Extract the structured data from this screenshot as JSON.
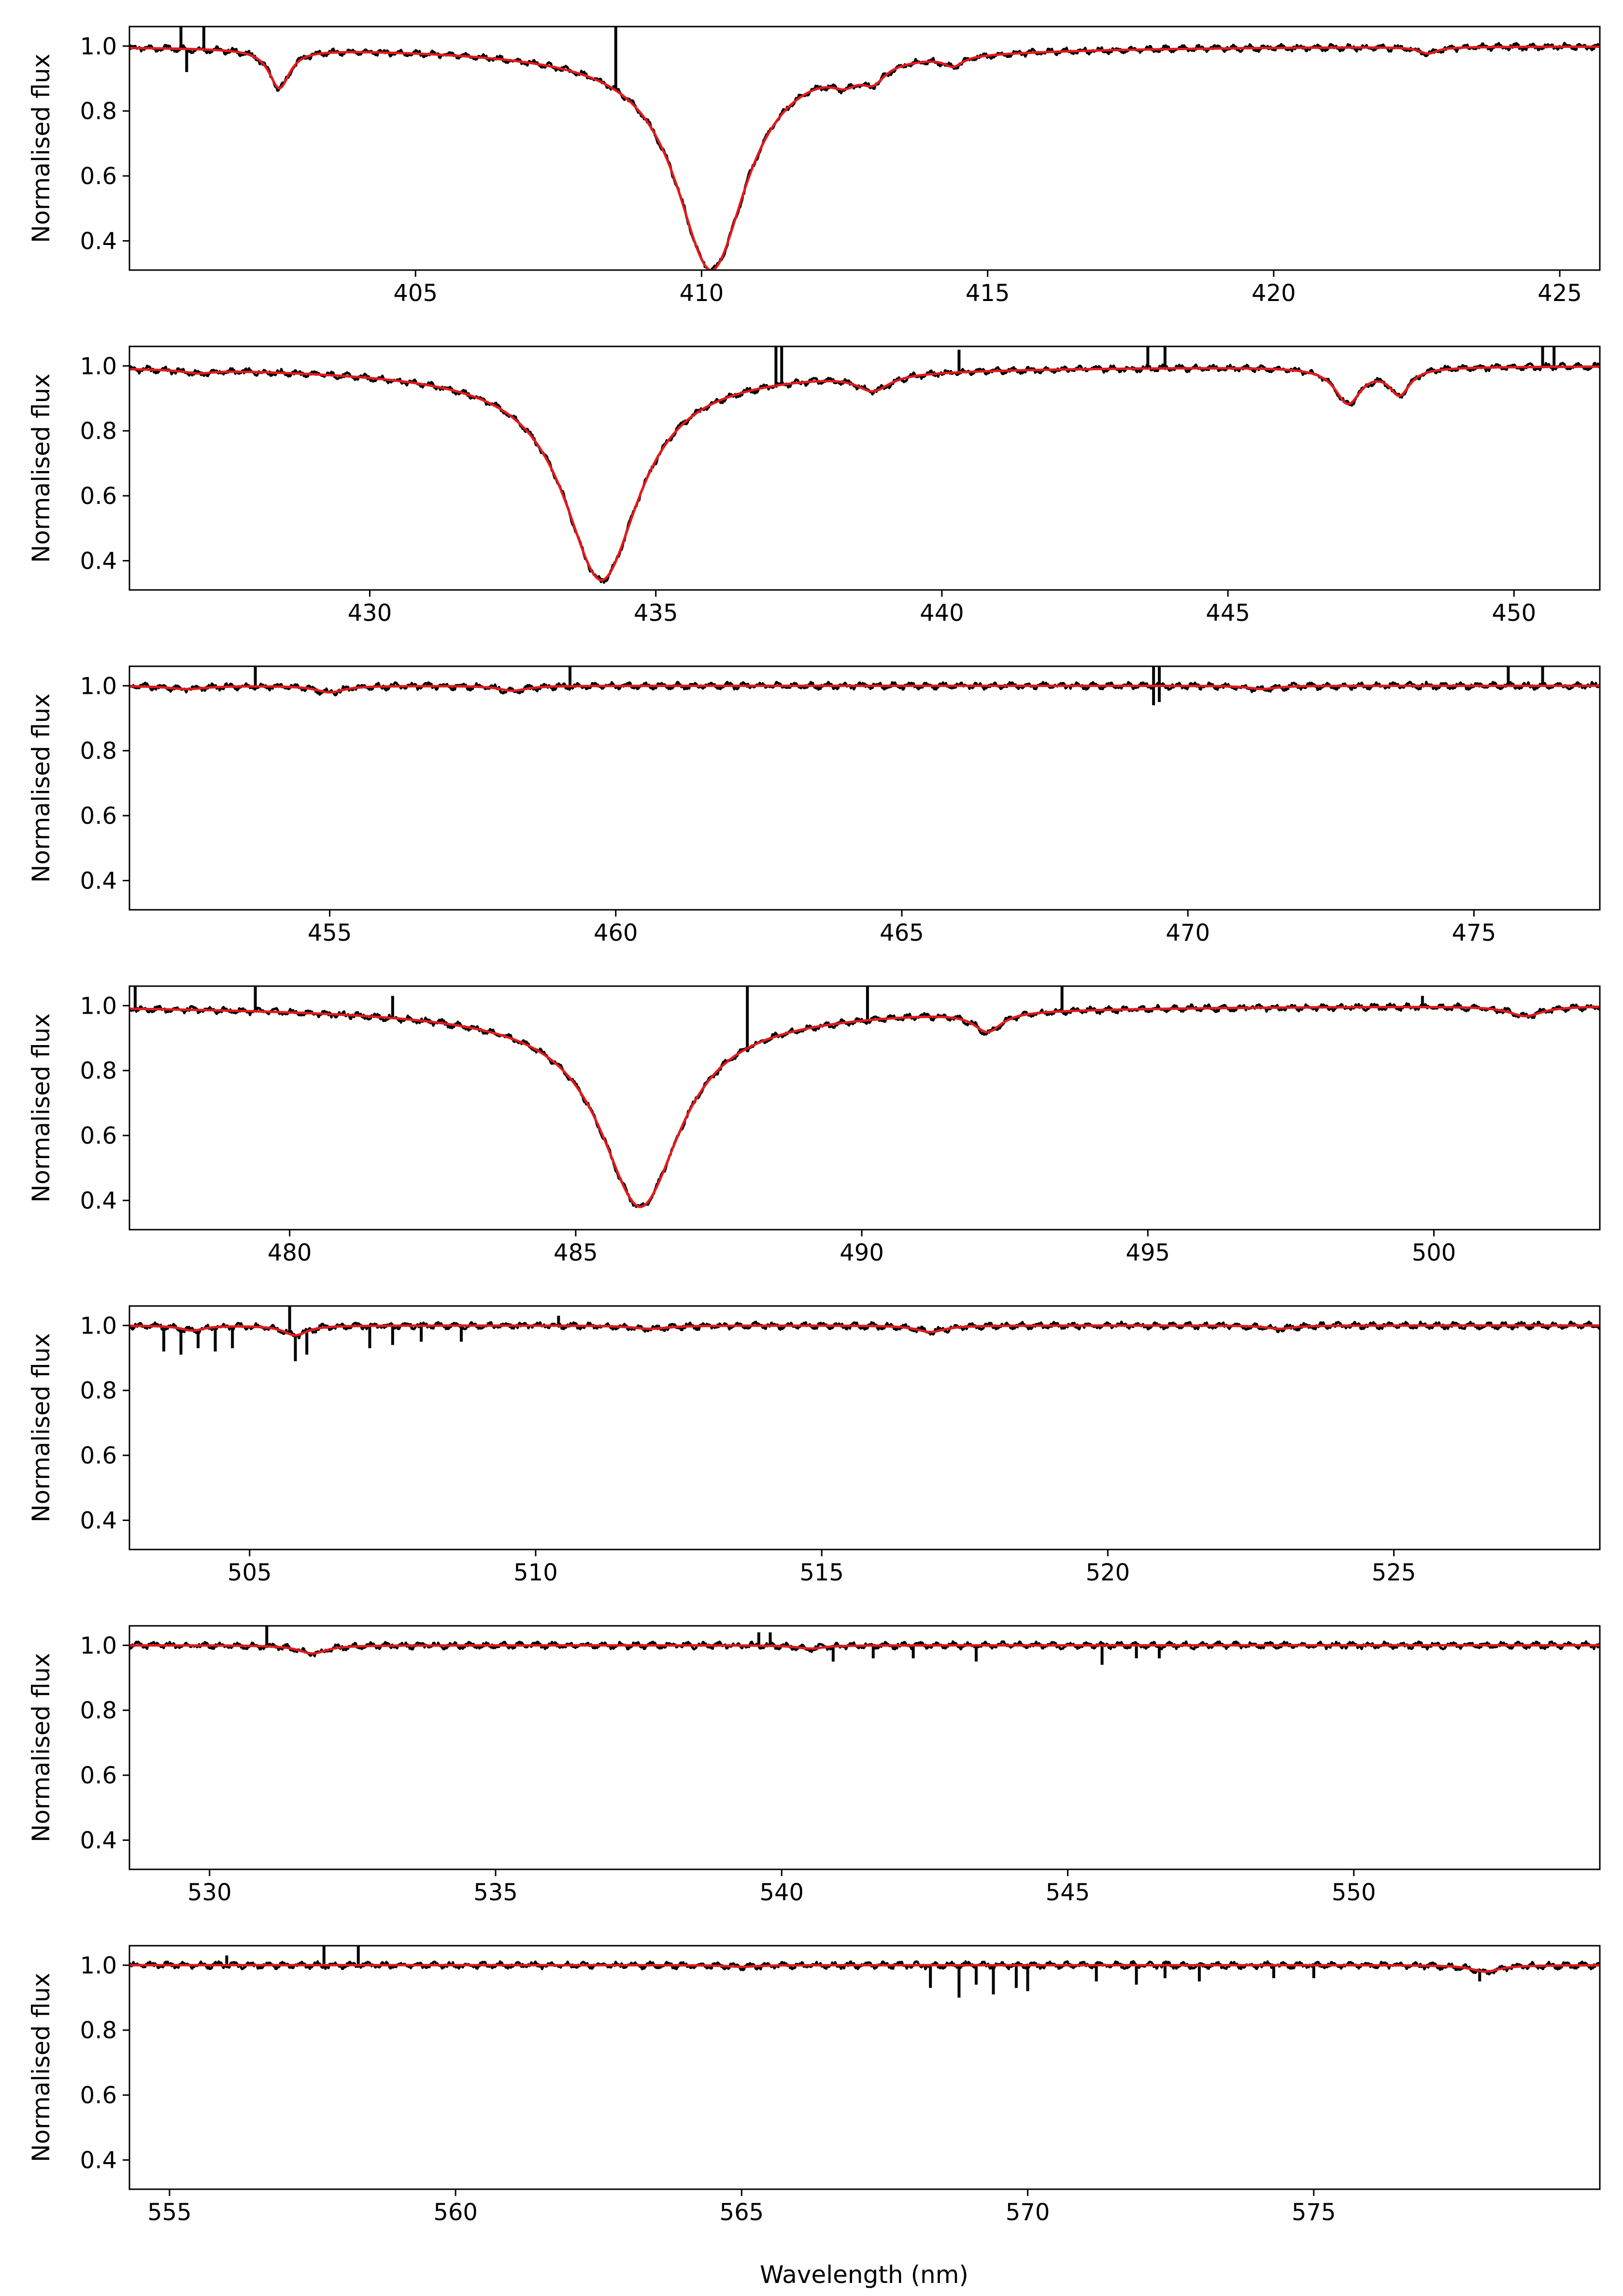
{
  "figure": {
    "xlabel": "Wavelength (nm)",
    "colors": {
      "observed": "#000000",
      "model": "#e41a1c",
      "axes": "#000000",
      "background": "#ffffff"
    }
  },
  "chart_data": [
    {
      "type": "line",
      "ylabel": "Normalised flux",
      "xlim": [
        400.0,
        425.7
      ],
      "ylim": [
        0.31,
        1.06
      ],
      "xticks": [
        405,
        410,
        415,
        420,
        425
      ],
      "yticks": [
        0.4,
        0.6,
        0.8,
        1.0
      ],
      "xtick_labels": [
        "405",
        "410",
        "415",
        "420",
        "425"
      ],
      "ytick_labels": [
        "0.4",
        "0.6",
        "0.8",
        "1.0"
      ],
      "lines": [
        {
          "center": 410.17,
          "depth": 0.64,
          "width": 0.75,
          "wing": 0.05,
          "wingWidth": 3.0
        },
        {
          "center": 402.62,
          "depth": 0.12,
          "width": 0.22
        },
        {
          "center": 412.5,
          "depth": 0.04,
          "width": 0.3
        },
        {
          "center": 413.0,
          "depth": 0.05,
          "width": 0.25
        },
        {
          "center": 414.4,
          "depth": 0.03,
          "width": 0.2
        },
        {
          "center": 422.7,
          "depth": 0.02,
          "width": 0.2
        }
      ],
      "spikes": [
        {
          "x": 400.9,
          "y": 1.06
        },
        {
          "x": 401.3,
          "y": 1.06
        },
        {
          "x": 408.5,
          "y": 1.06
        },
        {
          "x": 401.0,
          "y": 0.92
        }
      ]
    },
    {
      "type": "line",
      "ylabel": "Normalised flux",
      "xlim": [
        425.8,
        451.5
      ],
      "ylim": [
        0.31,
        1.06
      ],
      "xticks": [
        430,
        435,
        440,
        445,
        450
      ],
      "yticks": [
        0.4,
        0.6,
        0.8,
        1.0
      ],
      "xtick_labels": [
        "430",
        "435",
        "440",
        "445",
        "450"
      ],
      "ytick_labels": [
        "0.4",
        "0.6",
        "0.8",
        "1.0"
      ],
      "lines": [
        {
          "center": 434.05,
          "depth": 0.61,
          "width": 0.8,
          "wing": 0.05,
          "wingWidth": 3.2
        },
        {
          "center": 438.8,
          "depth": 0.05,
          "width": 0.35
        },
        {
          "center": 447.1,
          "depth": 0.11,
          "width": 0.28
        },
        {
          "center": 448.0,
          "depth": 0.08,
          "width": 0.22
        },
        {
          "center": 427.0,
          "depth": 0.01,
          "width": 0.3
        }
      ],
      "spikes": [
        {
          "x": 437.1,
          "y": 1.06
        },
        {
          "x": 437.2,
          "y": 1.06
        },
        {
          "x": 443.6,
          "y": 1.06
        },
        {
          "x": 443.9,
          "y": 1.06
        },
        {
          "x": 450.5,
          "y": 1.06
        },
        {
          "x": 450.7,
          "y": 1.06
        },
        {
          "x": 440.3,
          "y": 1.05
        }
      ]
    },
    {
      "type": "line",
      "ylabel": "Normalised flux",
      "xlim": [
        451.5,
        477.2
      ],
      "ylim": [
        0.31,
        1.06
      ],
      "xticks": [
        455,
        460,
        465,
        470,
        475
      ],
      "yticks": [
        0.4,
        0.6,
        0.8,
        1.0
      ],
      "xtick_labels": [
        "455",
        "460",
        "465",
        "470",
        "475"
      ],
      "ytick_labels": [
        "0.4",
        "0.6",
        "0.8",
        "1.0"
      ],
      "lines": [
        {
          "center": 455.0,
          "depth": 0.02,
          "width": 0.3
        },
        {
          "center": 458.2,
          "depth": 0.015,
          "width": 0.3
        },
        {
          "center": 452.5,
          "depth": 0.01,
          "width": 0.4
        },
        {
          "center": 471.3,
          "depth": 0.01,
          "width": 0.3
        }
      ],
      "spikes": [
        {
          "x": 453.7,
          "y": 1.06
        },
        {
          "x": 459.2,
          "y": 1.06
        },
        {
          "x": 469.4,
          "y": 1.06
        },
        {
          "x": 469.5,
          "y": 1.06
        },
        {
          "x": 475.6,
          "y": 1.06
        },
        {
          "x": 476.2,
          "y": 1.06
        },
        {
          "x": 469.4,
          "y": 0.94
        },
        {
          "x": 469.5,
          "y": 0.95
        }
      ]
    },
    {
      "type": "line",
      "ylabel": "Normalised flux",
      "xlim": [
        477.2,
        502.9
      ],
      "ylim": [
        0.31,
        1.06
      ],
      "xticks": [
        480,
        485,
        490,
        495,
        500
      ],
      "yticks": [
        0.4,
        0.6,
        0.8,
        1.0
      ],
      "xtick_labels": [
        "480",
        "485",
        "490",
        "495",
        "500"
      ],
      "ytick_labels": [
        "0.4",
        "0.6",
        "0.8",
        "1.0"
      ],
      "lines": [
        {
          "center": 486.13,
          "depth": 0.56,
          "width": 0.85,
          "wing": 0.06,
          "wingWidth": 3.5
        },
        {
          "center": 492.2,
          "depth": 0.06,
          "width": 0.3
        },
        {
          "center": 501.6,
          "depth": 0.03,
          "width": 0.35
        }
      ],
      "spikes": [
        {
          "x": 477.3,
          "y": 1.06
        },
        {
          "x": 479.4,
          "y": 1.06
        },
        {
          "x": 488.0,
          "y": 1.06
        },
        {
          "x": 490.1,
          "y": 1.06
        },
        {
          "x": 493.5,
          "y": 1.06
        },
        {
          "x": 499.8,
          "y": 1.03
        },
        {
          "x": 481.8,
          "y": 1.03
        }
      ]
    },
    {
      "type": "line",
      "ylabel": "Normalised flux",
      "xlim": [
        502.9,
        528.6
      ],
      "ylim": [
        0.31,
        1.06
      ],
      "xticks": [
        505,
        510,
        515,
        520,
        525
      ],
      "yticks": [
        0.4,
        0.6,
        0.8,
        1.0
      ],
      "xtick_labels": [
        "505",
        "510",
        "515",
        "520",
        "525"
      ],
      "ytick_labels": [
        "0.4",
        "0.6",
        "0.8",
        "1.0"
      ],
      "lines": [
        {
          "center": 505.8,
          "depth": 0.03,
          "width": 0.25
        },
        {
          "center": 516.9,
          "depth": 0.02,
          "width": 0.3
        },
        {
          "center": 504.0,
          "depth": 0.015,
          "width": 0.25
        },
        {
          "center": 512.0,
          "depth": 0.01,
          "width": 0.4
        },
        {
          "center": 523.0,
          "depth": 0.01,
          "width": 0.3
        }
      ],
      "spikes": [
        {
          "x": 505.7,
          "y": 1.06
        },
        {
          "x": 510.4,
          "y": 1.03
        },
        {
          "x": 503.5,
          "y": 0.92
        },
        {
          "x": 503.8,
          "y": 0.91
        },
        {
          "x": 504.1,
          "y": 0.93
        },
        {
          "x": 504.4,
          "y": 0.92
        },
        {
          "x": 504.7,
          "y": 0.93
        },
        {
          "x": 505.8,
          "y": 0.89
        },
        {
          "x": 506.0,
          "y": 0.91
        },
        {
          "x": 507.1,
          "y": 0.93
        },
        {
          "x": 507.5,
          "y": 0.94
        },
        {
          "x": 508.0,
          "y": 0.95
        },
        {
          "x": 508.7,
          "y": 0.95
        }
      ]
    },
    {
      "type": "line",
      "ylabel": "Normalised flux",
      "xlim": [
        528.6,
        554.3
      ],
      "ylim": [
        0.31,
        1.06
      ],
      "xticks": [
        530,
        535,
        540,
        545,
        550
      ],
      "yticks": [
        0.4,
        0.6,
        0.8,
        1.0
      ],
      "xtick_labels": [
        "530",
        "535",
        "540",
        "545",
        "550"
      ],
      "ytick_labels": [
        "0.4",
        "0.6",
        "0.8",
        "1.0"
      ],
      "lines": [
        {
          "center": 531.8,
          "depth": 0.025,
          "width": 0.3
        },
        {
          "center": 540.5,
          "depth": 0.01,
          "width": 0.3
        }
      ],
      "spikes": [
        {
          "x": 531.0,
          "y": 1.06
        },
        {
          "x": 539.6,
          "y": 1.04
        },
        {
          "x": 539.8,
          "y": 1.04
        },
        {
          "x": 540.9,
          "y": 0.95
        },
        {
          "x": 541.6,
          "y": 0.96
        },
        {
          "x": 542.3,
          "y": 0.96
        },
        {
          "x": 543.4,
          "y": 0.95
        },
        {
          "x": 545.6,
          "y": 0.94
        },
        {
          "x": 546.2,
          "y": 0.96
        },
        {
          "x": 546.6,
          "y": 0.96
        }
      ]
    },
    {
      "type": "line",
      "ylabel": "Normalised flux",
      "xlim": [
        554.3,
        580.0
      ],
      "ylim": [
        0.31,
        1.06
      ],
      "xticks": [
        555,
        560,
        565,
        570,
        575
      ],
      "yticks": [
        0.4,
        0.6,
        0.8,
        1.0
      ],
      "xtick_labels": [
        "555",
        "560",
        "565",
        "570",
        "575"
      ],
      "ytick_labels": [
        "0.4",
        "0.6",
        "0.8",
        "1.0"
      ],
      "lines": [
        {
          "center": 578.0,
          "depth": 0.02,
          "width": 0.3
        },
        {
          "center": 565.0,
          "depth": 0.005,
          "width": 0.3
        }
      ],
      "spikes": [
        {
          "x": 557.7,
          "y": 1.06
        },
        {
          "x": 558.3,
          "y": 1.06
        },
        {
          "x": 556.0,
          "y": 1.03
        },
        {
          "x": 568.3,
          "y": 0.93
        },
        {
          "x": 568.8,
          "y": 0.9
        },
        {
          "x": 569.1,
          "y": 0.94
        },
        {
          "x": 569.4,
          "y": 0.91
        },
        {
          "x": 569.8,
          "y": 0.93
        },
        {
          "x": 570.0,
          "y": 0.92
        },
        {
          "x": 571.2,
          "y": 0.95
        },
        {
          "x": 571.9,
          "y": 0.94
        },
        {
          "x": 572.4,
          "y": 0.96
        },
        {
          "x": 573.0,
          "y": 0.95
        },
        {
          "x": 574.3,
          "y": 0.96
        },
        {
          "x": 575.0,
          "y": 0.96
        },
        {
          "x": 577.9,
          "y": 0.95
        }
      ]
    }
  ]
}
